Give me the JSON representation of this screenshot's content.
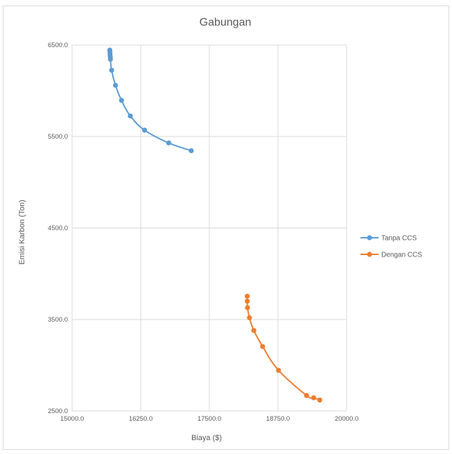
{
  "chart_data": {
    "type": "scatter",
    "title": "Gabungan",
    "xlabel": "Biaya ($)",
    "ylabel": "Emisi Karbon (Ton)",
    "xlim": [
      15000,
      20000
    ],
    "ylim": [
      2500,
      6500
    ],
    "x_ticks": [
      "15000.0",
      "16250.0",
      "17500.0",
      "18750.0",
      "20000.0"
    ],
    "y_ticks": [
      "2500.0",
      "3500.0",
      "4500.0",
      "5500.0",
      "6500.0"
    ],
    "grid": true,
    "legend_position": "right",
    "series": [
      {
        "name": "Tanpa CCS",
        "color": "#5b9bd5",
        "points": [
          [
            15687,
            6445
          ],
          [
            15690,
            6420
          ],
          [
            15692,
            6395
          ],
          [
            15695,
            6370
          ],
          [
            15698,
            6345
          ],
          [
            15720,
            6225
          ],
          [
            15790,
            6060
          ],
          [
            15900,
            5895
          ],
          [
            16060,
            5725
          ],
          [
            16320,
            5570
          ],
          [
            16760,
            5430
          ],
          [
            17170,
            5345
          ]
        ]
      },
      {
        "name": "Dengan CCS",
        "color": "#ed7d31",
        "points": [
          [
            18190,
            3755
          ],
          [
            18190,
            3700
          ],
          [
            18195,
            3630
          ],
          [
            18230,
            3520
          ],
          [
            18310,
            3380
          ],
          [
            18470,
            3205
          ],
          [
            18760,
            2945
          ],
          [
            19270,
            2670
          ],
          [
            19400,
            2645
          ],
          [
            19510,
            2620
          ]
        ]
      }
    ]
  }
}
